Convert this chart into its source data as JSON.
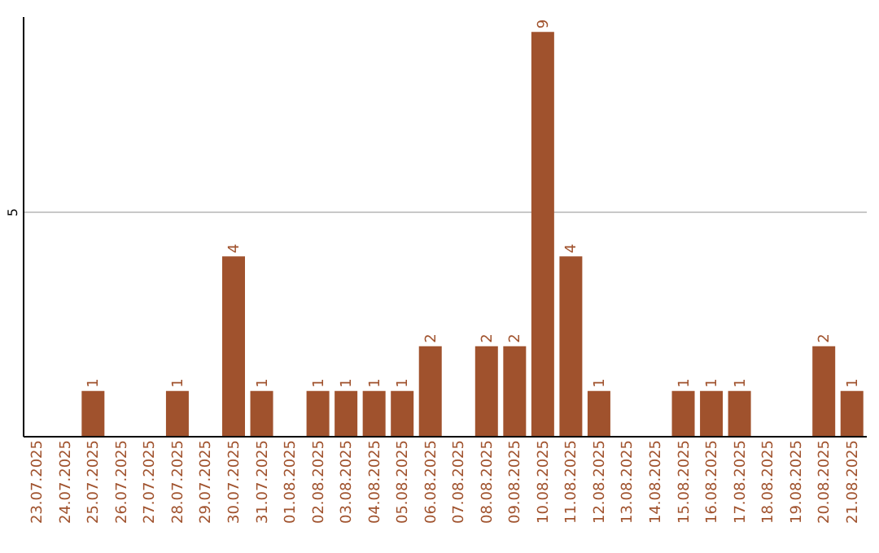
{
  "chart_data": {
    "type": "bar",
    "categories": [
      "23.07.2025",
      "24.07.2025",
      "25.07.2025",
      "26.07.2025",
      "27.07.2025",
      "28.07.2025",
      "29.07.2025",
      "30.07.2025",
      "31.07.2025",
      "01.08.2025",
      "02.08.2025",
      "03.08.2025",
      "04.08.2025",
      "05.08.2025",
      "06.08.2025",
      "07.08.2025",
      "08.08.2025",
      "09.08.2025",
      "10.08.2025",
      "11.08.2025",
      "12.08.2025",
      "13.08.2025",
      "14.08.2025",
      "15.08.2025",
      "16.08.2025",
      "17.08.2025",
      "18.08.2025",
      "19.08.2025",
      "20.08.2025",
      "21.08.2025"
    ],
    "values": [
      null,
      null,
      1,
      null,
      null,
      1,
      null,
      4,
      1,
      null,
      1,
      1,
      1,
      1,
      2,
      null,
      2,
      2,
      9,
      4,
      1,
      null,
      null,
      1,
      1,
      1,
      null,
      null,
      2,
      1
    ],
    "color": "#a0522d",
    "ylim": [
      0,
      9.35
    ],
    "yticks": [
      {
        "value": 0,
        "label": null
      },
      5
    ],
    "grid": "y",
    "data_labels": true
  }
}
